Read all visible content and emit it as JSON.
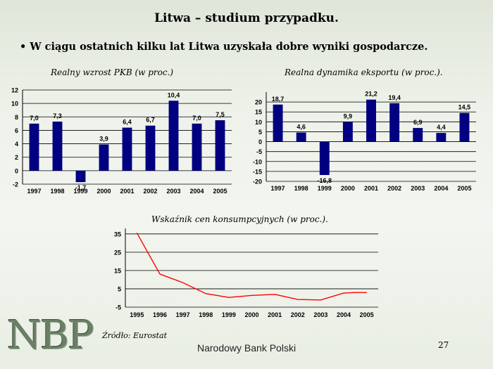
{
  "slide": {
    "title": "Litwa – studium przypadku.",
    "bullet": "• W ciągu ostatnich kilku lat Litwa uzyskała dobre wyniki gospodarcze.",
    "source": "Źródło: Eurostat",
    "logo_text": "NBP",
    "bank_name": "Narodowy Bank Polski",
    "page_number": "27"
  },
  "chart_data": [
    {
      "type": "bar",
      "title": "Realny wzrost PKB (w proc.)",
      "categories": [
        "1997",
        "1998",
        "1999",
        "2000",
        "2001",
        "2002",
        "2003",
        "2004",
        "2005"
      ],
      "values": [
        7.0,
        7.3,
        -1.7,
        3.9,
        6.4,
        6.7,
        10.4,
        7.0,
        7.5
      ],
      "data_labels": [
        "7,0",
        "7,3",
        "-1,7",
        "3,9",
        "6,4",
        "6,7",
        "10,4",
        "7,0",
        "7,5"
      ],
      "ylim": [
        -2,
        12
      ],
      "yticks": [
        -2,
        0,
        2,
        4,
        6,
        8,
        10,
        12
      ],
      "grid": true,
      "color": "#000080"
    },
    {
      "type": "bar",
      "title": "Realna dynamika eksportu (w proc.).",
      "categories": [
        "1997",
        "1998",
        "1999",
        "2000",
        "2001",
        "2002",
        "2003",
        "2004",
        "2005"
      ],
      "values": [
        18.7,
        4.6,
        -16.8,
        9.9,
        21.2,
        19.4,
        6.9,
        4.4,
        14.5
      ],
      "data_labels": [
        "18,7",
        "4,6",
        "-16,8",
        "9,9",
        "21,2",
        "19,4",
        "6,9",
        "4,4",
        "14,5"
      ],
      "ylim": [
        -20,
        25
      ],
      "yticks": [
        -20,
        -15,
        -10,
        -5,
        0,
        5,
        10,
        15,
        20
      ],
      "grid": true,
      "color": "#000080"
    },
    {
      "type": "line",
      "title": "Wskaźnik cen konsumpcyjnych (w proc.).",
      "categories": [
        "1995",
        "1996",
        "1997",
        "1998",
        "1999",
        "2000",
        "2001",
        "2002",
        "2003",
        "2004",
        "2005"
      ],
      "x": [
        1995.0,
        1996.0,
        1997.0,
        1998.0,
        1999.0,
        2000.0,
        2001.0,
        2002.0,
        2003.0,
        2004.0,
        2004.5,
        2005.0
      ],
      "y": [
        35.6,
        13.1,
        8.4,
        2.4,
        0.3,
        1.4,
        2.0,
        -0.8,
        -1.1,
        2.7,
        3.0,
        3.0
      ],
      "ylim": [
        -5,
        38
      ],
      "yticks": [
        -5,
        5,
        15,
        25,
        35
      ],
      "grid": true,
      "color": "#ff0000"
    }
  ]
}
